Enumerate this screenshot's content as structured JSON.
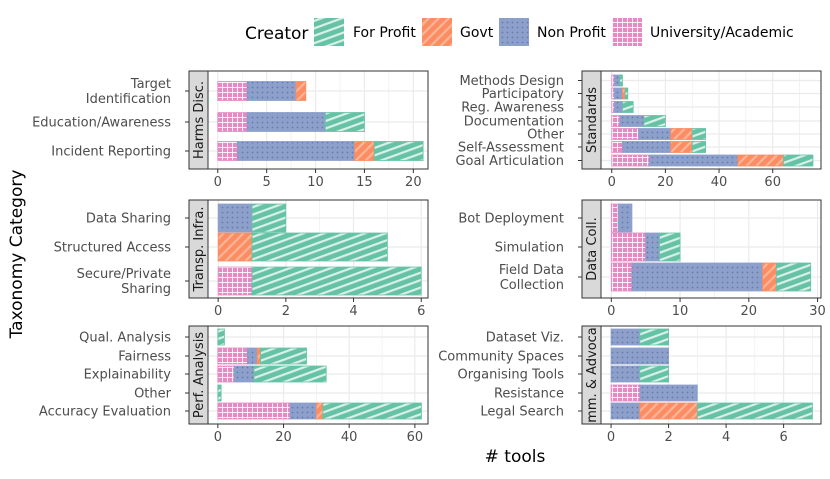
{
  "legend": {
    "title": "Creator",
    "items": [
      {
        "key": "forprofit",
        "label": "For Profit"
      },
      {
        "key": "govt",
        "label": "Govt"
      },
      {
        "key": "nonprofit",
        "label": "Non Profit"
      },
      {
        "key": "univ",
        "label": "University/Academic"
      }
    ]
  },
  "colors": {
    "forprofit": "#66c2a5",
    "govt": "#fc8d62",
    "nonprofit": "#8da0cb",
    "univ": "#e78ac3",
    "strip_bg": "#d9d9d9",
    "grid": "#ebebeb"
  },
  "xlabel": "# tools",
  "ylabel": "Taxonomy Category",
  "chart_data": [
    {
      "type": "bar",
      "stacked": "horizontal",
      "facet": "Harms Disc.",
      "categories": [
        "Target\nIdentification",
        "Education/Awareness",
        "Incident Reporting"
      ],
      "series": [
        {
          "name": "University/Academic",
          "values": [
            3,
            3,
            2
          ]
        },
        {
          "name": "Non Profit",
          "values": [
            5,
            8,
            12
          ]
        },
        {
          "name": "Govt",
          "values": [
            1,
            0,
            2
          ]
        },
        {
          "name": "For Profit",
          "values": [
            0,
            4,
            5
          ]
        }
      ],
      "xlim": [
        -1,
        21.5
      ],
      "xticks": [
        0,
        5,
        10,
        15,
        20
      ]
    },
    {
      "type": "bar",
      "stacked": "horizontal",
      "facet": "Standards",
      "categories": [
        "Methods Design",
        "Participatory",
        "Reg. Awareness",
        "Documentation",
        "Other",
        "Self-Assessment",
        "Goal Articulation"
      ],
      "series": [
        {
          "name": "University/Academic",
          "values": [
            1,
            1,
            1,
            3,
            10,
            4,
            14
          ]
        },
        {
          "name": "Non Profit",
          "values": [
            2,
            3,
            3,
            9,
            12,
            18,
            33
          ]
        },
        {
          "name": "Govt",
          "values": [
            0,
            1,
            0,
            0,
            8,
            8,
            17
          ]
        },
        {
          "name": "For Profit",
          "values": [
            1,
            1,
            4,
            8,
            5,
            5,
            11
          ]
        }
      ],
      "xlim": [
        -4,
        78
      ],
      "xticks": [
        0,
        20,
        40,
        60
      ]
    },
    {
      "type": "bar",
      "stacked": "horizontal",
      "facet": "Transp. Infra.",
      "categories": [
        "Data Sharing",
        "Structured Access",
        "Secure/Private\nSharing"
      ],
      "series": [
        {
          "name": "Govt",
          "values": [
            0,
            1,
            0
          ]
        },
        {
          "name": "University/Academic",
          "values": [
            0,
            0,
            1
          ]
        },
        {
          "name": "Non Profit",
          "values": [
            1,
            0,
            0
          ]
        },
        {
          "name": "For Profit",
          "values": [
            1,
            4,
            5
          ]
        }
      ],
      "xlim": [
        -0.3,
        6.2
      ],
      "xticks": [
        0,
        2,
        4,
        6
      ]
    },
    {
      "type": "bar",
      "stacked": "horizontal",
      "facet": "Data Coll.",
      "categories": [
        "Bot Deployment",
        "Simulation",
        "Field Data\nCollection"
      ],
      "series": [
        {
          "name": "University/Academic",
          "values": [
            1,
            5,
            3
          ]
        },
        {
          "name": "Non Profit",
          "values": [
            2,
            2,
            19
          ]
        },
        {
          "name": "Govt",
          "values": [
            0,
            0,
            2
          ]
        },
        {
          "name": "For Profit",
          "values": [
            0,
            3,
            5
          ]
        }
      ],
      "xlim": [
        -1.5,
        30.5
      ],
      "xticks": [
        0,
        10,
        20,
        30
      ]
    },
    {
      "type": "bar",
      "stacked": "horizontal",
      "facet": "Perf. Analysis",
      "categories": [
        "Qual. Analysis",
        "Fairness",
        "Explainability",
        "Other",
        "Accuracy Evaluation"
      ],
      "series": [
        {
          "name": "University/Academic",
          "values": [
            0,
            9,
            5,
            0,
            22
          ]
        },
        {
          "name": "Non Profit",
          "values": [
            0,
            3,
            6,
            0,
            8
          ]
        },
        {
          "name": "Govt",
          "values": [
            0,
            1,
            0,
            0,
            2
          ]
        },
        {
          "name": "For Profit",
          "values": [
            2,
            14,
            22,
            1,
            30
          ]
        }
      ],
      "xlim": [
        -3,
        64
      ],
      "xticks": [
        0,
        20,
        40,
        60
      ]
    },
    {
      "type": "bar",
      "stacked": "horizontal",
      "facet": "mm. & Advoca",
      "categories": [
        "Dataset Viz.",
        "Community Spaces",
        "Organising Tools",
        "Resistance",
        "Legal Search"
      ],
      "series": [
        {
          "name": "University/Academic",
          "values": [
            0,
            0,
            0,
            1,
            0
          ]
        },
        {
          "name": "Non Profit",
          "values": [
            1,
            2,
            1,
            2,
            1
          ]
        },
        {
          "name": "Govt",
          "values": [
            0,
            0,
            0,
            0,
            2
          ]
        },
        {
          "name": "For Profit",
          "values": [
            1,
            0,
            1,
            0,
            4
          ]
        }
      ],
      "xlim": [
        -0.35,
        7.3
      ],
      "xticks": [
        0,
        2,
        4,
        6
      ]
    }
  ]
}
